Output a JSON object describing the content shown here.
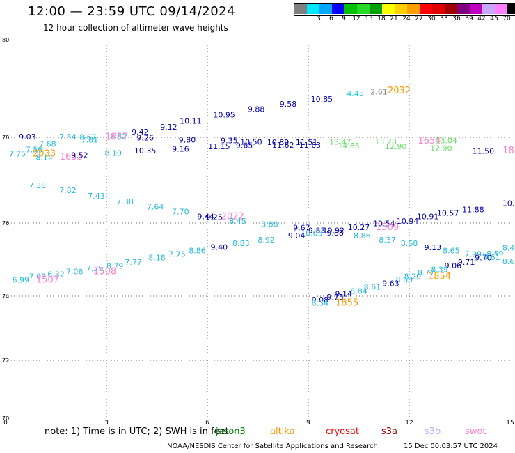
{
  "header": {
    "title": "12:00 — 23:59 UTC 09/14/2024",
    "subtitle": "12 hour collection of altimeter wave heights"
  },
  "legend": {
    "unit": "(ft)",
    "swatches": [
      {
        "color": "#808080",
        "label": ""
      },
      {
        "color": "#00e8ff",
        "label": "3"
      },
      {
        "color": "#00a8ff",
        "label": "6"
      },
      {
        "color": "#0000ff",
        "label": "9"
      },
      {
        "color": "#00c000",
        "label": "12"
      },
      {
        "color": "#28d828",
        "label": "15"
      },
      {
        "color": "#00a000",
        "label": "18"
      },
      {
        "color": "#ffff00",
        "label": "21"
      },
      {
        "color": "#ffd000",
        "label": "24"
      },
      {
        "color": "#ffa000",
        "label": "27"
      },
      {
        "color": "#ff0000",
        "label": "30"
      },
      {
        "color": "#e00000",
        "label": "33"
      },
      {
        "color": "#a00000",
        "label": "36"
      },
      {
        "color": "#800080",
        "label": "39"
      },
      {
        "color": "#c000c0",
        "label": "42"
      },
      {
        "color": "#c8a8ff",
        "label": "45"
      },
      {
        "color": "#ff80ff",
        "label": "70"
      },
      {
        "color": "#000000",
        "label": ""
      }
    ]
  },
  "map": {
    "x_ticks": [
      "0",
      "3",
      "6",
      "9",
      "12",
      "15"
    ],
    "y_ticks": [
      "70",
      "72",
      "74",
      "76",
      "78",
      "80"
    ],
    "grid_x": [
      3,
      6,
      9,
      12
    ],
    "grid_y": [
      72,
      74,
      76,
      78
    ]
  },
  "labels": [
    {
      "text": "2.61",
      "x": 11.1,
      "y": 78.88,
      "color": "#808080"
    },
    {
      "text": "4.45",
      "x": 10.4,
      "y": 78.84,
      "color": "#00d8e8"
    },
    {
      "text": "2032",
      "x": 11.7,
      "y": 78.9,
      "color": "#ff9900",
      "size": 13
    },
    {
      "text": "10.85",
      "x": 9.4,
      "y": 78.73,
      "color": "#0000b0"
    },
    {
      "text": "9.58",
      "x": 8.4,
      "y": 78.63,
      "color": "#0000b0"
    },
    {
      "text": "9.88",
      "x": 7.45,
      "y": 78.52,
      "color": "#0000b0"
    },
    {
      "text": "10.95",
      "x": 6.5,
      "y": 78.41,
      "color": "#0000b0"
    },
    {
      "text": "10.11",
      "x": 5.5,
      "y": 78.28,
      "color": "#0000b0"
    },
    {
      "text": "9.12",
      "x": 4.85,
      "y": 78.16,
      "color": "#0000b0"
    },
    {
      "text": "9.42",
      "x": 4.0,
      "y": 78.06,
      "color": "#0000b0"
    },
    {
      "text": "9.03",
      "x": 0.65,
      "y": 77.95,
      "color": "#0000b0"
    },
    {
      "text": "7.54",
      "x": 1.85,
      "y": 77.95,
      "color": "#22bbdd"
    },
    {
      "text": "8.67",
      "x": 2.45,
      "y": 77.94,
      "color": "#22bbdd"
    },
    {
      "text": "8.82",
      "x": 3.35,
      "y": 77.96,
      "color": "#22bbdd"
    },
    {
      "text": "1857",
      "x": 3.3,
      "y": 77.94,
      "color": "#ff80d0",
      "size": 13
    },
    {
      "text": "9.26",
      "x": 4.15,
      "y": 77.93,
      "color": "#0000b0"
    },
    {
      "text": "7.81",
      "x": 2.5,
      "y": 77.88,
      "color": "#22bbdd"
    },
    {
      "text": "9.80",
      "x": 5.4,
      "y": 77.88,
      "color": "#0000b0"
    },
    {
      "text": "9.35",
      "x": 6.65,
      "y": 77.86,
      "color": "#0000b0"
    },
    {
      "text": "10.50",
      "x": 7.3,
      "y": 77.83,
      "color": "#0000b0"
    },
    {
      "text": "10.89",
      "x": 8.1,
      "y": 77.82,
      "color": "#0000b0"
    },
    {
      "text": "11.51",
      "x": 8.95,
      "y": 77.82,
      "color": "#0000b0"
    },
    {
      "text": "13.47",
      "x": 9.95,
      "y": 77.83,
      "color": "#66dd66"
    },
    {
      "text": "13.28",
      "x": 11.3,
      "y": 77.84,
      "color": "#66dd66"
    },
    {
      "text": "1654",
      "x": 12.6,
      "y": 77.85,
      "color": "#ff80d0",
      "size": 13
    },
    {
      "text": "13.04",
      "x": 13.1,
      "y": 77.86,
      "color": "#66dd66"
    },
    {
      "text": "7.68",
      "x": 1.25,
      "y": 77.78,
      "color": "#22bbdd"
    },
    {
      "text": "11.15",
      "x": 6.35,
      "y": 77.72,
      "color": "#0000b0"
    },
    {
      "text": "9.65",
      "x": 7.1,
      "y": 77.75,
      "color": "#0000b0"
    },
    {
      "text": "11.62",
      "x": 8.25,
      "y": 77.76,
      "color": "#0000b0"
    },
    {
      "text": "11.63",
      "x": 9.05,
      "y": 77.76,
      "color": "#0000b0"
    },
    {
      "text": "14.85",
      "x": 10.2,
      "y": 77.74,
      "color": "#66dd66"
    },
    {
      "text": "12.90",
      "x": 11.6,
      "y": 77.72,
      "color": "#66dd66"
    },
    {
      "text": "12.90",
      "x": 12.95,
      "y": 77.68,
      "color": "#66dd66"
    },
    {
      "text": "7.56",
      "x": 0.85,
      "y": 77.65,
      "color": "#22bbdd"
    },
    {
      "text": "9.16",
      "x": 5.2,
      "y": 77.67,
      "color": "#0000b0"
    },
    {
      "text": "10.35",
      "x": 4.15,
      "y": 77.63,
      "color": "#0000b0"
    },
    {
      "text": "8.10",
      "x": 3.2,
      "y": 77.57,
      "color": "#22bbdd"
    },
    {
      "text": "11.50",
      "x": 14.2,
      "y": 77.62,
      "color": "#0000b0"
    },
    {
      "text": "18",
      "x": 14.95,
      "y": 77.63,
      "color": "#ff80d0",
      "size": 13
    },
    {
      "text": "7.75",
      "x": 0.35,
      "y": 77.55,
      "color": "#22bbdd"
    },
    {
      "text": "2033",
      "x": 1.15,
      "y": 77.55,
      "color": "#ff9900",
      "size": 13
    },
    {
      "text": "8.14",
      "x": 1.15,
      "y": 77.47,
      "color": "#22bbdd"
    },
    {
      "text": "1653",
      "x": 1.95,
      "y": 77.48,
      "color": "#ff80d0",
      "size": 13
    },
    {
      "text": "9.52",
      "x": 2.2,
      "y": 77.52,
      "color": "#0000b0"
    },
    {
      "text": "7.38",
      "x": 0.95,
      "y": 76.81,
      "color": "#22bbdd"
    },
    {
      "text": "7.82",
      "x": 1.85,
      "y": 76.7,
      "color": "#22bbdd"
    },
    {
      "text": "7.43",
      "x": 2.7,
      "y": 76.57,
      "color": "#22bbdd"
    },
    {
      "text": "7.38",
      "x": 3.55,
      "y": 76.44,
      "color": "#22bbdd"
    },
    {
      "text": "7.64",
      "x": 4.45,
      "y": 76.32,
      "color": "#22bbdd"
    },
    {
      "text": "7.70",
      "x": 5.2,
      "y": 76.2,
      "color": "#22bbdd"
    },
    {
      "text": "9.44",
      "x": 5.95,
      "y": 76.09,
      "color": "#0000b0"
    },
    {
      "text": "2022",
      "x": 6.75,
      "y": 76.09,
      "color": "#ff80d0",
      "size": 13
    },
    {
      "text": "9.25",
      "x": 6.2,
      "y": 76.07,
      "color": "#0000b0"
    },
    {
      "text": "10.",
      "x": 14.95,
      "y": 76.4,
      "color": "#0000b0"
    },
    {
      "text": "11.88",
      "x": 13.9,
      "y": 76.25,
      "color": "#0000b0"
    },
    {
      "text": "10.57",
      "x": 13.15,
      "y": 76.17,
      "color": "#0000b0"
    },
    {
      "text": "10.91",
      "x": 12.55,
      "y": 76.09,
      "color": "#0000b0"
    },
    {
      "text": "10.94",
      "x": 11.95,
      "y": 75.98,
      "color": "#0000b0"
    },
    {
      "text": "8.45",
      "x": 6.9,
      "y": 75.98,
      "color": "#22bbdd"
    },
    {
      "text": "10.54",
      "x": 11.25,
      "y": 75.91,
      "color": "#0000b0"
    },
    {
      "text": "8.88",
      "x": 7.85,
      "y": 75.9,
      "color": "#22bbdd"
    },
    {
      "text": "1509",
      "x": 11.35,
      "y": 75.81,
      "color": "#ff80d0",
      "size": 13
    },
    {
      "text": "10.27",
      "x": 10.5,
      "y": 75.81,
      "color": "#0000b0"
    },
    {
      "text": "9.67",
      "x": 8.8,
      "y": 75.8,
      "color": "#0000b0"
    },
    {
      "text": "9.83",
      "x": 9.25,
      "y": 75.72,
      "color": "#0000b0"
    },
    {
      "text": "10.92",
      "x": 9.75,
      "y": 75.72,
      "color": "#0000b0"
    },
    {
      "text": "10.03",
      "x": 9.1,
      "y": 75.65,
      "color": "#22bbdd"
    },
    {
      "text": "9.88",
      "x": 9.8,
      "y": 75.66,
      "color": "#0000b0"
    },
    {
      "text": "9.04",
      "x": 8.65,
      "y": 75.58,
      "color": "#0000b0"
    },
    {
      "text": "8.86",
      "x": 10.6,
      "y": 75.58,
      "color": "#22bbdd"
    },
    {
      "text": "8.92",
      "x": 7.75,
      "y": 75.47,
      "color": "#22bbdd"
    },
    {
      "text": "8.37",
      "x": 11.35,
      "y": 75.47,
      "color": "#22bbdd"
    },
    {
      "text": "8.83",
      "x": 7.0,
      "y": 75.37,
      "color": "#22bbdd"
    },
    {
      "text": "8.68",
      "x": 12.0,
      "y": 75.37,
      "color": "#22bbdd"
    },
    {
      "text": "9.40",
      "x": 6.35,
      "y": 75.27,
      "color": "#0000b0"
    },
    {
      "text": "9.13",
      "x": 12.7,
      "y": 75.26,
      "color": "#0000b0"
    },
    {
      "text": "8.86",
      "x": 5.7,
      "y": 75.17,
      "color": "#22bbdd"
    },
    {
      "text": "8.65",
      "x": 13.25,
      "y": 75.17,
      "color": "#22bbdd"
    },
    {
      "text": "8.4",
      "x": 14.95,
      "y": 75.25,
      "color": "#22bbdd"
    },
    {
      "text": "7.75",
      "x": 5.1,
      "y": 75.08,
      "color": "#22bbdd"
    },
    {
      "text": "7.99",
      "x": 13.9,
      "y": 75.08,
      "color": "#22bbdd"
    },
    {
      "text": "8.59",
      "x": 14.55,
      "y": 75.09,
      "color": "#22bbdd"
    },
    {
      "text": "9.70",
      "x": 14.2,
      "y": 74.98,
      "color": "#0000b0"
    },
    {
      "text": "8.61",
      "x": 14.45,
      "y": 74.99,
      "color": "#22bbdd"
    },
    {
      "text": "8.18",
      "x": 4.5,
      "y": 74.98,
      "color": "#22bbdd"
    },
    {
      "text": "8.6",
      "x": 14.95,
      "y": 74.88,
      "color": "#22bbdd"
    },
    {
      "text": "9.71",
      "x": 13.7,
      "y": 74.86,
      "color": "#0000b0"
    },
    {
      "text": "7.77",
      "x": 3.8,
      "y": 74.86,
      "color": "#22bbdd"
    },
    {
      "text": "9.06",
      "x": 13.3,
      "y": 74.76,
      "color": "#0000b0"
    },
    {
      "text": "8.79",
      "x": 3.25,
      "y": 74.75,
      "color": "#22bbdd"
    },
    {
      "text": "7.39",
      "x": 2.65,
      "y": 74.69,
      "color": "#22bbdd"
    },
    {
      "text": "8.39",
      "x": 12.9,
      "y": 74.66,
      "color": "#22bbdd"
    },
    {
      "text": "1508",
      "x": 2.95,
      "y": 74.6,
      "color": "#ff80d0",
      "size": 13
    },
    {
      "text": "7.06",
      "x": 2.05,
      "y": 74.6,
      "color": "#22bbdd"
    },
    {
      "text": "8.77",
      "x": 12.5,
      "y": 74.57,
      "color": "#22bbdd"
    },
    {
      "text": "1854",
      "x": 12.9,
      "y": 74.47,
      "color": "#ff9900",
      "size": 13
    },
    {
      "text": "6.32",
      "x": 1.5,
      "y": 74.52,
      "color": "#22bbdd"
    },
    {
      "text": "8.20",
      "x": 12.1,
      "y": 74.47,
      "color": "#22bbdd"
    },
    {
      "text": "7.09",
      "x": 0.95,
      "y": 74.47,
      "color": "#22bbdd"
    },
    {
      "text": "8.60",
      "x": 11.85,
      "y": 74.38,
      "color": "#22bbdd"
    },
    {
      "text": "6.99",
      "x": 0.45,
      "y": 74.37,
      "color": "#22bbdd"
    },
    {
      "text": "1507",
      "x": 1.25,
      "y": 74.37,
      "color": "#ff80d0",
      "size": 13
    },
    {
      "text": "9.63",
      "x": 11.45,
      "y": 74.28,
      "color": "#0000b0"
    },
    {
      "text": "8.61",
      "x": 10.9,
      "y": 74.18,
      "color": "#22bbdd"
    },
    {
      "text": "8.84",
      "x": 10.5,
      "y": 74.07,
      "color": "#22bbdd"
    },
    {
      "text": "9.14",
      "x": 10.05,
      "y": 73.99,
      "color": "#0000b0"
    },
    {
      "text": "9.75",
      "x": 9.8,
      "y": 73.89,
      "color": "#0000b0"
    },
    {
      "text": "9.08",
      "x": 9.35,
      "y": 73.8,
      "color": "#0000b0"
    },
    {
      "text": "8.34",
      "x": 9.35,
      "y": 73.71,
      "color": "#22bbdd"
    },
    {
      "text": "1855",
      "x": 10.15,
      "y": 73.71,
      "color": "#ff9900",
      "size": 13
    }
  ],
  "footer": {
    "note": "note:  1) Time is in UTC; 2) SWH is in feet",
    "satellites": [
      {
        "name": "jason3",
        "color": "#008000"
      },
      {
        "name": "altika",
        "color": "#ff9900"
      },
      {
        "name": "cryosat",
        "color": "#ff0000"
      },
      {
        "name": "s3a",
        "color": "#a00000"
      },
      {
        "name": "s3b",
        "color": "#c8a8ff"
      },
      {
        "name": "swot",
        "color": "#ff80d0"
      }
    ],
    "credit": "NOAA/NESDIS Center for Satellite Applications and Research",
    "timestamp": "15 Dec 00:03:57 UTC 2024"
  }
}
